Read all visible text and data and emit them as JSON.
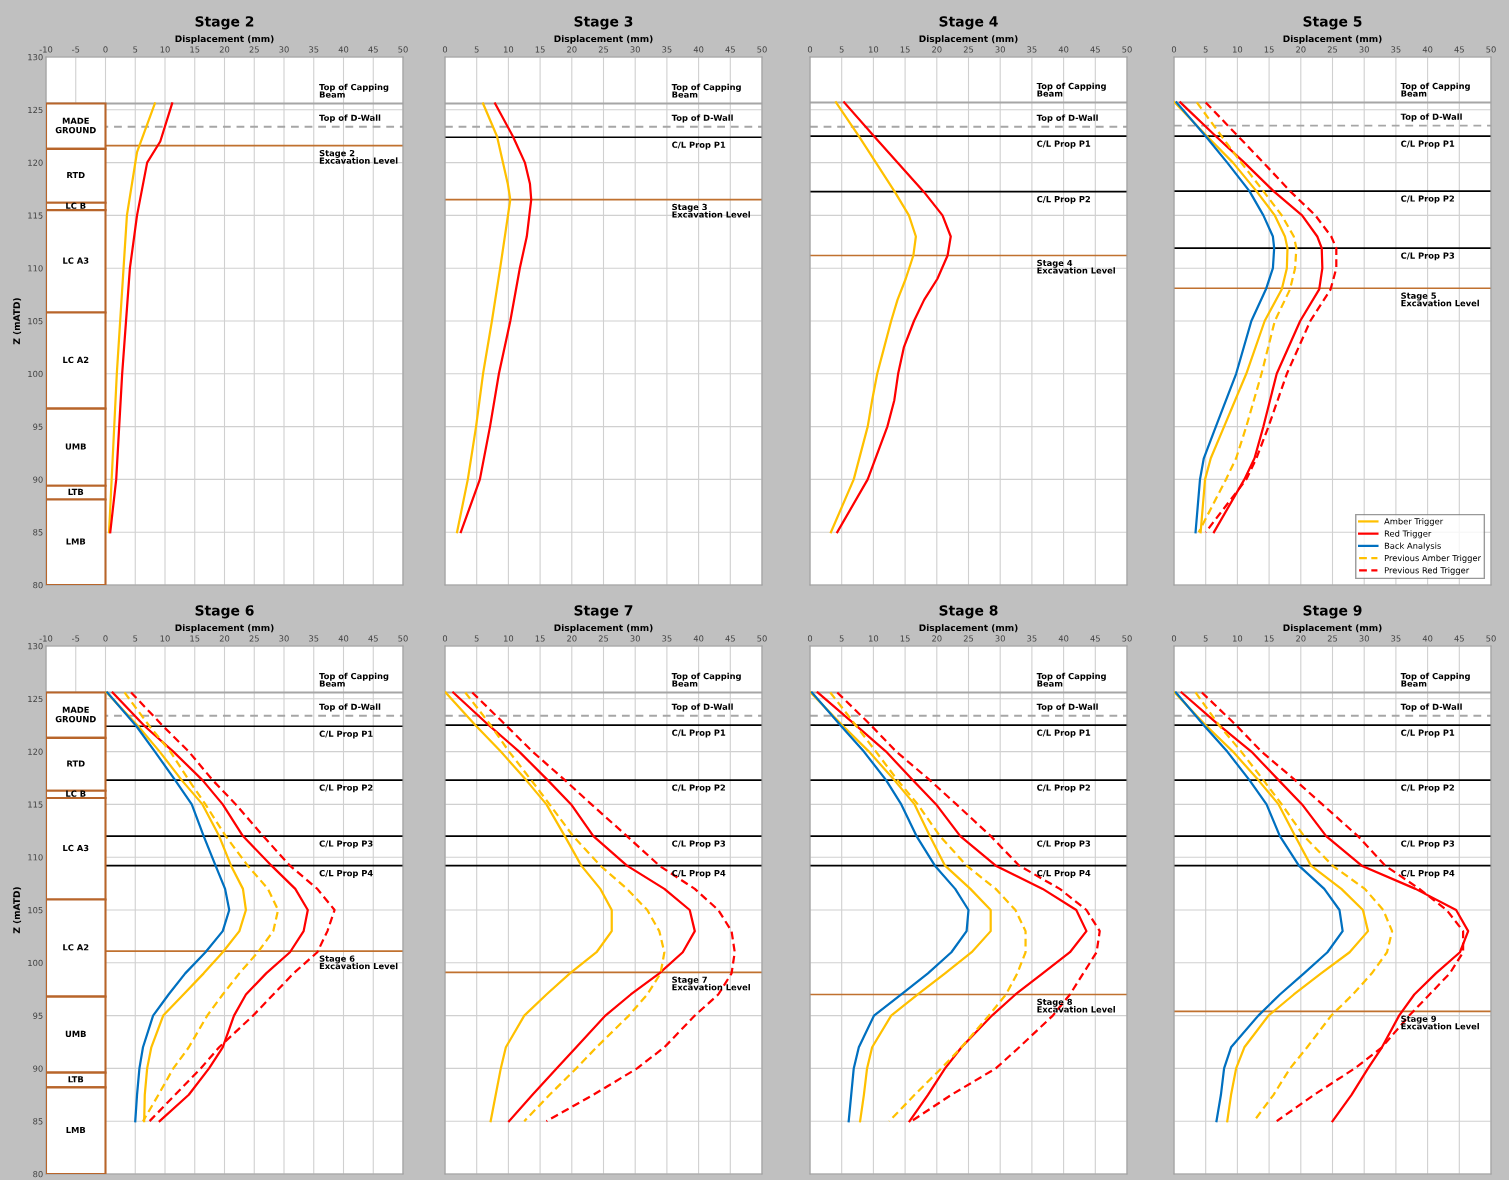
{
  "chart_data": [
    {
      "type": "line",
      "title": "Stage 2",
      "xlabel": "Displacement (mm)",
      "ylabel": "Z (mATD)",
      "xlim": [
        -10,
        50
      ],
      "ylim": [
        80,
        130
      ],
      "xticks": [
        -10,
        -5,
        0,
        5,
        10,
        15,
        20,
        25,
        30,
        35,
        40,
        45,
        50
      ],
      "yticks": [
        80,
        85,
        90,
        95,
        100,
        105,
        110,
        115,
        120,
        125,
        130
      ],
      "grid": true,
      "ref_lines": [
        {
          "axis": "y",
          "value": 125.6,
          "label": "Top of Capping\nBeam",
          "color": "#a6a6a6",
          "line_style": "solid"
        },
        {
          "axis": "y",
          "value": 123.4,
          "label": "Top of D-Wall",
          "color": "#a6a6a6",
          "line_style": "dashed"
        },
        {
          "axis": "y",
          "value": 121.6,
          "label": "Stage 2\nExcavation Level",
          "color": "#c0712f",
          "line_style": "solid"
        }
      ],
      "bands": [
        {
          "axis": "y",
          "from": 121.3,
          "to": 125.6,
          "label": "MADE\nGROUND",
          "color": "#b8652a"
        },
        {
          "axis": "y",
          "from": 116.2,
          "to": 121.3,
          "label": "RTD",
          "color": "#b8652a"
        },
        {
          "axis": "y",
          "from": 115.5,
          "to": 116.2,
          "label": "LC B",
          "color": "#b8652a"
        },
        {
          "axis": "y",
          "from": 105.8,
          "to": 115.5,
          "label": "LC A3",
          "color": "#b8652a"
        },
        {
          "axis": "y",
          "from": 96.7,
          "to": 105.8,
          "label": "LC A2",
          "color": "#b8652a"
        },
        {
          "axis": "y",
          "from": 89.4,
          "to": 96.7,
          "label": "UMB",
          "color": "#b8652a"
        },
        {
          "axis": "y",
          "from": 88.1,
          "to": 89.4,
          "label": "LTB",
          "color": "#b8652a"
        },
        {
          "axis": "y",
          "from": 80,
          "to": 88.1,
          "label": "LMB",
          "color": "#b8652a"
        }
      ],
      "series": [
        {
          "color": "#ffc000",
          "line_style": "solid",
          "x": [
            8.3,
            5.3,
            3.6,
            1.9,
            0.6
          ],
          "values": [
            125.6,
            121,
            115,
            100,
            85
          ]
        },
        {
          "color": "#ff0000",
          "line_style": "solid",
          "x": [
            11.2,
            9.2,
            7.0,
            5.3,
            4.1,
            2.8,
            1.8,
            0.8
          ],
          "values": [
            125.6,
            122,
            120,
            115,
            110,
            100,
            90,
            85
          ]
        }
      ]
    },
    {
      "type": "line",
      "title": "Stage 3",
      "xlabel": "Displacement (mm)",
      "xlim": [
        0,
        50
      ],
      "ylim": [
        80,
        130
      ],
      "xticks": [
        0,
        5,
        10,
        15,
        20,
        25,
        30,
        35,
        40,
        45,
        50
      ],
      "yticks": [
        80,
        85,
        90,
        95,
        100,
        105,
        110,
        115,
        120,
        125,
        130
      ],
      "grid": true,
      "tick_labels": "x",
      "ref_lines": [
        {
          "axis": "y",
          "value": 125.6,
          "label": "Top of Capping\nBeam",
          "color": "#a6a6a6",
          "line_style": "solid"
        },
        {
          "axis": "y",
          "value": 123.4,
          "label": "Top of D-Wall",
          "color": "#a6a6a6",
          "line_style": "dashed"
        },
        {
          "axis": "y",
          "value": 122.4,
          "label": "C/L Prop P1",
          "color": "#000000",
          "line_style": "solid"
        },
        {
          "axis": "y",
          "value": 116.5,
          "label": "Stage 3\nExcavation Level",
          "color": "#c0712f",
          "line_style": "solid"
        }
      ],
      "series": [
        {
          "color": "#ffc000",
          "line_style": "solid",
          "x": [
            6.0,
            8.2,
            9.9,
            10.3,
            8.7,
            7.4,
            6.0,
            4.9,
            3.6,
            1.9
          ],
          "values": [
            125.6,
            122.5,
            118,
            116.5,
            110,
            105,
            100,
            95,
            90,
            85
          ]
        },
        {
          "color": "#ff0000",
          "line_style": "solid",
          "x": [
            7.9,
            10.7,
            12.6,
            13.4,
            13.6,
            12.9,
            11.8,
            10.3,
            8.5,
            7.1,
            5.5,
            2.5
          ],
          "values": [
            125.6,
            122.5,
            120,
            118,
            116.5,
            113,
            110,
            105,
            100,
            95,
            90,
            85
          ]
        }
      ]
    },
    {
      "type": "line",
      "title": "Stage 4",
      "xlabel": "Displacement (mm)",
      "xlim": [
        0,
        50
      ],
      "ylim": [
        80,
        130
      ],
      "xticks": [
        0,
        5,
        10,
        15,
        20,
        25,
        30,
        35,
        40,
        45,
        50
      ],
      "yticks": [
        80,
        85,
        90,
        95,
        100,
        105,
        110,
        115,
        120,
        125,
        130
      ],
      "grid": true,
      "tick_labels": "x",
      "ref_lines": [
        {
          "axis": "y",
          "value": 125.7,
          "label": "Top of Capping\nBeam",
          "color": "#a6a6a6",
          "line_style": "solid"
        },
        {
          "axis": "y",
          "value": 123.4,
          "label": "Top of D-Wall",
          "color": "#a6a6a6",
          "line_style": "dashed"
        },
        {
          "axis": "y",
          "value": 122.5,
          "label": "C/L Prop P1",
          "color": "#000000",
          "line_style": "solid"
        },
        {
          "axis": "y",
          "value": 117.25,
          "label": "C/L Prop P2",
          "color": "#000000",
          "line_style": "solid"
        },
        {
          "axis": "y",
          "value": 111.2,
          "label": "Stage 4\nExcavation Level",
          "color": "#c0712f",
          "line_style": "solid"
        }
      ],
      "series": [
        {
          "color": "#ffc000",
          "line_style": "solid",
          "x": [
            4.1,
            7.7,
            10.4,
            13.4,
            15.6,
            16.7,
            16.3,
            15.1,
            13.8,
            12.8,
            11.7,
            10.6,
            9.8,
            9.1,
            6.9,
            3.3
          ],
          "values": [
            125.7,
            122.5,
            120,
            117.2,
            115,
            113,
            111.2,
            109,
            107,
            105,
            102.5,
            100,
            97.5,
            95,
            90,
            85
          ]
        },
        {
          "color": "#ff0000",
          "line_style": "solid",
          "x": [
            5.4,
            10.1,
            13.8,
            18.0,
            20.9,
            22.2,
            21.7,
            20.1,
            18.0,
            16.4,
            14.8,
            13.9,
            13.3,
            12.2,
            9.1,
            4.3
          ],
          "values": [
            125.7,
            122.5,
            120,
            117.2,
            115,
            113,
            111.2,
            109,
            107,
            105,
            102.5,
            100,
            97.5,
            95,
            90,
            85
          ]
        }
      ]
    },
    {
      "type": "line",
      "title": "Stage 5",
      "xlabel": "Displacement (mm)",
      "xlim": [
        0,
        50
      ],
      "ylim": [
        80,
        130
      ],
      "xticks": [
        0,
        5,
        10,
        15,
        20,
        25,
        30,
        35,
        40,
        45,
        50
      ],
      "yticks": [
        80,
        85,
        90,
        95,
        100,
        105,
        110,
        115,
        120,
        125,
        130
      ],
      "grid": true,
      "tick_labels": "x",
      "legend": "bottom right",
      "ref_lines": [
        {
          "axis": "y",
          "value": 125.7,
          "label": "Top of Capping\nBeam",
          "color": "#a6a6a6",
          "line_style": "solid"
        },
        {
          "axis": "y",
          "value": 123.5,
          "label": "Top of D-Wall",
          "color": "#a6a6a6",
          "line_style": "dashed"
        },
        {
          "axis": "y",
          "value": 122.5,
          "label": "C/L Prop P1",
          "color": "#000000",
          "line_style": "solid"
        },
        {
          "axis": "y",
          "value": 117.3,
          "label": "C/L Prop P2",
          "color": "#000000",
          "line_style": "solid"
        },
        {
          "axis": "y",
          "value": 111.9,
          "label": "C/L Prop P3",
          "color": "#000000",
          "line_style": "solid"
        },
        {
          "axis": "y",
          "value": 108.1,
          "label": "Stage 5\nExcavation Level",
          "color": "#c0712f",
          "line_style": "solid"
        }
      ],
      "series": [
        {
          "name": "Amber Trigger",
          "color": "#ffc000",
          "line_style": "solid",
          "x": [
            0.1,
            5.2,
            9.3,
            13.0,
            15.9,
            17.5,
            17.9,
            17.8,
            17.0,
            14.3,
            11.4,
            7.9,
            5.8,
            4.9,
            4.2
          ],
          "values": [
            125.7,
            122.5,
            120,
            117.3,
            115,
            113,
            111.9,
            110,
            108,
            105,
            100,
            95,
            92,
            90,
            85
          ]
        },
        {
          "name": "Red Trigger",
          "color": "#ff0000",
          "line_style": "solid",
          "x": [
            1.0,
            6.6,
            11.1,
            15.7,
            20.2,
            22.6,
            23.3,
            23.4,
            22.9,
            19.9,
            16.2,
            14.1,
            12.7,
            11.1,
            6.3
          ],
          "values": [
            125.7,
            122.5,
            120,
            117.3,
            115,
            113,
            111.9,
            110,
            108,
            105,
            100,
            95,
            92,
            90,
            85
          ]
        },
        {
          "name": "Back Analysis",
          "color": "#0070c0",
          "line_style": "solid",
          "x": [
            0.4,
            5.0,
            8.4,
            11.9,
            14.1,
            15.6,
            15.8,
            15.6,
            14.5,
            12.2,
            9.8,
            6.6,
            4.7,
            4.1,
            3.4
          ],
          "values": [
            125.7,
            122.5,
            120,
            117.3,
            115,
            113,
            111.9,
            110,
            108,
            105,
            100,
            95,
            92,
            90,
            85
          ]
        },
        {
          "name": "Previous Amber Trigger",
          "color": "#ffc000",
          "line_style": "dashed",
          "x": [
            3.6,
            7.5,
            10.6,
            14.1,
            17.0,
            18.9,
            19.3,
            19.1,
            18.3,
            15.9,
            13.8,
            11.4,
            9.8,
            8.2,
            3.9
          ],
          "values": [
            125.7,
            122.5,
            120,
            117.3,
            115,
            113,
            111.9,
            110,
            108,
            105,
            100,
            95,
            92,
            90,
            85
          ]
        },
        {
          "name": "Previous Red Trigger",
          "color": "#ff0000",
          "line_style": "dashed",
          "x": [
            5.0,
            10.1,
            14.1,
            18.3,
            22.3,
            24.8,
            25.6,
            25.6,
            24.7,
            21.5,
            17.8,
            14.9,
            13.0,
            11.4,
            5.0
          ],
          "values": [
            125.7,
            122.5,
            120,
            117.3,
            115,
            113,
            111.9,
            110,
            108,
            105,
            100,
            95,
            92,
            90,
            85
          ]
        }
      ]
    },
    {
      "type": "line",
      "title": "Stage 6",
      "xlabel": "Displacement (mm)",
      "ylabel": "Z (mATD)",
      "xlim": [
        -10,
        50
      ],
      "ylim": [
        80,
        130
      ],
      "xticks": [
        -10,
        -5,
        0,
        5,
        10,
        15,
        20,
        25,
        30,
        35,
        40,
        45,
        50
      ],
      "yticks": [
        80,
        85,
        90,
        95,
        100,
        105,
        110,
        115,
        120,
        125,
        130
      ],
      "grid": true,
      "ref_lines": [
        {
          "axis": "y",
          "value": 125.6,
          "label": "Top of Capping\nBeam",
          "color": "#a6a6a6",
          "line_style": "solid"
        },
        {
          "axis": "y",
          "value": 123.4,
          "label": "Top of D-Wall",
          "color": "#a6a6a6",
          "line_style": "dashed"
        },
        {
          "axis": "y",
          "value": 122.4,
          "label": "C/L Prop P1",
          "color": "#000000",
          "line_style": "solid"
        },
        {
          "axis": "y",
          "value": 117.3,
          "label": "C/L Prop P2",
          "color": "#000000",
          "line_style": "solid"
        },
        {
          "axis": "y",
          "value": 112.0,
          "label": "C/L Prop P3",
          "color": "#000000",
          "line_style": "solid"
        },
        {
          "axis": "y",
          "value": 109.2,
          "label": "C/L Prop P4",
          "color": "#000000",
          "line_style": "solid"
        },
        {
          "axis": "y",
          "value": 101.1,
          "label": "Stage 6\nExcavation Level",
          "color": "#c0712f",
          "line_style": "solid"
        }
      ],
      "bands": [
        {
          "axis": "y",
          "from": 121.3,
          "to": 125.6,
          "label": "MADE\nGROUND",
          "color": "#b8652a"
        },
        {
          "axis": "y",
          "from": 116.3,
          "to": 121.3,
          "label": "RTD",
          "color": "#b8652a"
        },
        {
          "axis": "y",
          "from": 115.6,
          "to": 116.3,
          "label": "LC B",
          "color": "#b8652a"
        },
        {
          "axis": "y",
          "from": 106.0,
          "to": 115.6,
          "label": "LC A3",
          "color": "#b8652a"
        },
        {
          "axis": "y",
          "from": 96.8,
          "to": 106.0,
          "label": "LC A2",
          "color": "#b8652a"
        },
        {
          "axis": "y",
          "from": 89.6,
          "to": 96.8,
          "label": "UMB",
          "color": "#b8652a"
        },
        {
          "axis": "y",
          "from": 88.2,
          "to": 89.6,
          "label": "LTB",
          "color": "#b8652a"
        },
        {
          "axis": "y",
          "from": 80,
          "to": 88.2,
          "label": "LMB",
          "color": "#b8652a"
        }
      ],
      "series": [
        {
          "color": "#ffc000",
          "line_style": "solid",
          "x": [
            0.2,
            5.5,
            9.1,
            12.8,
            16.3,
            19.1,
            21.1,
            23.1,
            23.6,
            22.5,
            19.7,
            16.5,
            13.1,
            9.7,
            7.7,
            7.0,
            6.6,
            6.5
          ],
          "values": [
            125.6,
            122.4,
            120,
            117.3,
            115,
            112,
            109.2,
            107,
            105,
            103,
            101,
            99,
            97,
            95,
            92,
            90,
            87.5,
            85
          ]
        },
        {
          "color": "#ff0000",
          "line_style": "solid",
          "x": [
            1.2,
            6.6,
            11.4,
            16.3,
            19.7,
            23.1,
            27.9,
            31.9,
            34.0,
            33.3,
            31.0,
            27.0,
            23.6,
            21.6,
            19.7,
            17.4,
            14.0,
            9.1
          ],
          "values": [
            125.6,
            122.4,
            120,
            117.3,
            115,
            112,
            109.2,
            107,
            105,
            103,
            101,
            99,
            97,
            95,
            92,
            90,
            87.5,
            85
          ]
        },
        {
          "color": "#0070c0",
          "line_style": "solid",
          "x": [
            0.3,
            5.2,
            8.3,
            11.7,
            14.5,
            16.5,
            18.5,
            20.1,
            20.8,
            19.7,
            16.8,
            13.4,
            10.6,
            8.0,
            6.3,
            5.7,
            5.3,
            5.0
          ],
          "values": [
            125.6,
            122.4,
            120,
            117.3,
            115,
            112,
            109.2,
            107,
            105,
            103,
            101,
            99,
            97,
            95,
            92,
            90,
            87.5,
            85
          ]
        },
        {
          "color": "#ffc000",
          "line_style": "dashed",
          "x": [
            3.2,
            7.4,
            10.9,
            14.0,
            16.8,
            20.2,
            23.9,
            27.3,
            29.0,
            28.2,
            25.6,
            22.5,
            19.7,
            17.1,
            14.0,
            11.4,
            8.9,
            6.3
          ],
          "values": [
            125.6,
            122.4,
            120,
            117.3,
            115,
            112,
            109.2,
            107,
            105,
            103,
            101,
            99,
            97,
            95,
            92,
            90,
            87.5,
            85
          ]
        },
        {
          "color": "#ff0000",
          "line_style": "dashed",
          "x": [
            4.3,
            9.7,
            14.0,
            18.0,
            21.9,
            26.5,
            31.0,
            35.6,
            38.5,
            37.3,
            35.6,
            31.6,
            28.2,
            24.8,
            19.1,
            16.0,
            11.7,
            7.4
          ],
          "values": [
            125.6,
            122.4,
            120,
            117.3,
            115,
            112,
            109.2,
            107,
            105,
            103,
            101,
            99,
            97,
            95,
            92,
            90,
            87.5,
            85
          ]
        }
      ]
    },
    {
      "type": "line",
      "title": "Stage 7",
      "xlabel": "Displacement (mm)",
      "xlim": [
        0,
        50
      ],
      "ylim": [
        80,
        130
      ],
      "xticks": [
        0,
        5,
        10,
        15,
        20,
        25,
        30,
        35,
        40,
        45,
        50
      ],
      "yticks": [
        80,
        85,
        90,
        95,
        100,
        105,
        110,
        115,
        120,
        125,
        130
      ],
      "grid": true,
      "tick_labels": "x",
      "ref_lines": [
        {
          "axis": "y",
          "value": 125.6,
          "label": "Top of Capping\nBeam",
          "color": "#a6a6a6",
          "line_style": "solid"
        },
        {
          "axis": "y",
          "value": 123.4,
          "label": "Top of D-Wall",
          "color": "#a6a6a6",
          "line_style": "dashed"
        },
        {
          "axis": "y",
          "value": 122.5,
          "label": "C/L Prop P1",
          "color": "#000000",
          "line_style": "solid"
        },
        {
          "axis": "y",
          "value": 117.3,
          "label": "C/L Prop P2",
          "color": "#000000",
          "line_style": "solid"
        },
        {
          "axis": "y",
          "value": 112.0,
          "label": "C/L Prop P3",
          "color": "#000000",
          "line_style": "solid"
        },
        {
          "axis": "y",
          "value": 109.2,
          "label": "C/L Prop P4",
          "color": "#000000",
          "line_style": "solid"
        },
        {
          "axis": "y",
          "value": 99.1,
          "label": "Stage 7\nExcavation Level",
          "color": "#c0712f",
          "line_style": "solid"
        }
      ],
      "series": [
        {
          "color": "#ffc000",
          "line_style": "solid",
          "x": [
            0.1,
            4.8,
            8.8,
            12.8,
            16.0,
            18.9,
            21.5,
            24.5,
            26.3,
            26.3,
            23.9,
            19.7,
            16.0,
            12.5,
            9.6,
            8.8,
            8.0,
            7.2
          ],
          "values": [
            125.6,
            122.5,
            120,
            117.3,
            115,
            112,
            109.2,
            107,
            105,
            103,
            101,
            99,
            97,
            95,
            92,
            90,
            87.5,
            85
          ]
        },
        {
          "color": "#ff0000",
          "line_style": "solid",
          "x": [
            1.3,
            6.9,
            11.7,
            16.2,
            19.9,
            23.4,
            28.7,
            34.6,
            38.6,
            39.4,
            37.5,
            33.8,
            29.3,
            25.3,
            20.7,
            17.6,
            13.8,
            10.1
          ],
          "values": [
            125.6,
            122.5,
            120,
            117.3,
            115,
            112,
            109.2,
            107,
            105,
            103,
            101,
            99,
            97,
            95,
            92,
            90,
            87.5,
            85
          ]
        },
        {
          "color": "#ffc000",
          "line_style": "dashed",
          "x": [
            3.2,
            7.2,
            10.1,
            13.6,
            16.5,
            20.2,
            24.5,
            28.7,
            31.9,
            33.8,
            34.6,
            34.0,
            31.9,
            29.0,
            23.9,
            20.7,
            16.5,
            12.5
          ],
          "values": [
            125.6,
            122.5,
            120,
            117.3,
            115,
            112,
            109.2,
            107,
            105,
            103,
            101,
            99,
            97,
            95,
            92,
            90,
            87.5,
            85
          ]
        },
        {
          "color": "#ff0000",
          "line_style": "dashed",
          "x": [
            4.3,
            9.6,
            13.8,
            18.9,
            23.1,
            28.7,
            33.8,
            39.4,
            43.1,
            45.2,
            45.7,
            45.2,
            43.1,
            39.4,
            34.6,
            30.3,
            23.4,
            16.0
          ],
          "values": [
            125.6,
            122.5,
            120,
            117.3,
            115,
            112,
            109.2,
            107,
            105,
            103,
            101,
            99,
            97,
            95,
            92,
            90,
            87.5,
            85
          ]
        }
      ]
    },
    {
      "type": "line",
      "title": "Stage 8",
      "xlabel": "Displacement (mm)",
      "xlim": [
        0,
        50
      ],
      "ylim": [
        80,
        130
      ],
      "xticks": [
        0,
        5,
        10,
        15,
        20,
        25,
        30,
        35,
        40,
        45,
        50
      ],
      "yticks": [
        80,
        85,
        90,
        95,
        100,
        105,
        110,
        115,
        120,
        125,
        130
      ],
      "grid": true,
      "tick_labels": "x",
      "ref_lines": [
        {
          "axis": "y",
          "value": 125.6,
          "label": "Top of Capping\nBeam",
          "color": "#a6a6a6",
          "line_style": "solid"
        },
        {
          "axis": "y",
          "value": 123.4,
          "label": "Top of D-Wall",
          "color": "#a6a6a6",
          "line_style": "dashed"
        },
        {
          "axis": "y",
          "value": 122.5,
          "label": "C/L Prop P1",
          "color": "#000000",
          "line_style": "solid"
        },
        {
          "axis": "y",
          "value": 117.3,
          "label": "C/L Prop P2",
          "color": "#000000",
          "line_style": "solid"
        },
        {
          "axis": "y",
          "value": 112.0,
          "label": "C/L Prop P3",
          "color": "#000000",
          "line_style": "solid"
        },
        {
          "axis": "y",
          "value": 109.2,
          "label": "C/L Prop P4",
          "color": "#000000",
          "line_style": "solid"
        },
        {
          "axis": "y",
          "value": 97.0,
          "label": "Stage 8\nExcavation Level",
          "color": "#c0712f",
          "line_style": "solid"
        }
      ],
      "series": [
        {
          "color": "#ffc000",
          "line_style": "solid",
          "x": [
            0.1,
            5.1,
            9.3,
            13.3,
            16.5,
            18.9,
            21.3,
            25.3,
            28.5,
            28.5,
            25.5,
            21.3,
            17.0,
            12.8,
            9.8,
            9.0,
            8.5,
            7.9
          ],
          "values": [
            125.6,
            122.5,
            120,
            117.3,
            115,
            112,
            109.2,
            107,
            105,
            103,
            101,
            99,
            97,
            95,
            92,
            90,
            87.5,
            85
          ]
        },
        {
          "color": "#ff0000",
          "line_style": "solid",
          "x": [
            1.2,
            7.2,
            12.0,
            16.2,
            19.9,
            23.7,
            29.3,
            36.7,
            42.0,
            43.6,
            41.0,
            36.7,
            32.4,
            28.7,
            23.9,
            21.3,
            18.6,
            15.7
          ],
          "values": [
            125.6,
            122.5,
            120,
            117.3,
            115,
            112,
            109.2,
            107,
            105,
            103,
            101,
            99,
            97,
            95,
            92,
            90,
            87.5,
            85
          ]
        },
        {
          "color": "#0070c0",
          "line_style": "solid",
          "x": [
            0.3,
            4.8,
            8.5,
            12.0,
            14.4,
            16.8,
            19.7,
            22.9,
            25.0,
            24.7,
            22.3,
            18.6,
            14.4,
            10.1,
            7.7,
            6.9,
            6.5,
            6.1
          ],
          "values": [
            125.6,
            122.5,
            120,
            117.3,
            115,
            112,
            109.2,
            107,
            105,
            103,
            101,
            99,
            97,
            95,
            92,
            90,
            87.5,
            85
          ]
        },
        {
          "color": "#ffc000",
          "line_style": "dashed",
          "x": [
            3.2,
            7.2,
            10.4,
            13.8,
            17.0,
            20.5,
            24.7,
            29.3,
            32.4,
            34.0,
            34.0,
            32.7,
            30.9,
            28.2,
            23.9,
            20.7,
            16.5,
            12.5
          ],
          "values": [
            125.6,
            122.5,
            120,
            117.3,
            115,
            112,
            109.2,
            107,
            105,
            103,
            101,
            99,
            97,
            95,
            92,
            90,
            87.5,
            85
          ]
        },
        {
          "color": "#ff0000",
          "line_style": "dashed",
          "x": [
            4.3,
            9.6,
            13.6,
            18.9,
            23.1,
            28.5,
            33.0,
            39.4,
            43.6,
            45.7,
            45.2,
            43.1,
            41.0,
            38.3,
            33.0,
            29.3,
            22.3,
            16.0
          ],
          "values": [
            125.6,
            122.5,
            120,
            117.3,
            115,
            112,
            109.2,
            107,
            105,
            103,
            101,
            99,
            97,
            95,
            92,
            90,
            87.5,
            85
          ]
        }
      ]
    },
    {
      "type": "line",
      "title": "Stage 9",
      "xlabel": "Displacement (mm)",
      "xlim": [
        0,
        50
      ],
      "ylim": [
        80,
        130
      ],
      "xticks": [
        0,
        5,
        10,
        15,
        20,
        25,
        30,
        35,
        40,
        45,
        50
      ],
      "yticks": [
        80,
        85,
        90,
        95,
        100,
        105,
        110,
        115,
        120,
        125,
        130
      ],
      "grid": true,
      "tick_labels": "x",
      "ref_lines": [
        {
          "axis": "y",
          "value": 125.6,
          "label": "Top of Capping\nBeam",
          "color": "#a6a6a6",
          "line_style": "solid"
        },
        {
          "axis": "y",
          "value": 123.4,
          "label": "Top of D-Wall",
          "color": "#a6a6a6",
          "line_style": "dashed"
        },
        {
          "axis": "y",
          "value": 122.5,
          "label": "C/L Prop P1",
          "color": "#000000",
          "line_style": "solid"
        },
        {
          "axis": "y",
          "value": 117.3,
          "label": "C/L Prop P2",
          "color": "#000000",
          "line_style": "solid"
        },
        {
          "axis": "y",
          "value": 112.0,
          "label": "C/L Prop P3",
          "color": "#000000",
          "line_style": "solid"
        },
        {
          "axis": "y",
          "value": 109.2,
          "label": "C/L Prop P4",
          "color": "#000000",
          "line_style": "solid"
        },
        {
          "axis": "y",
          "value": 95.4,
          "label": "Stage 9\nExcavation Level",
          "color": "#c0712f",
          "line_style": "solid"
        }
      ],
      "series": [
        {
          "color": "#ffc000",
          "line_style": "solid",
          "x": [
            0.1,
            5.0,
            9.3,
            13.3,
            16.5,
            19.1,
            21.6,
            26.4,
            29.8,
            30.6,
            27.7,
            23.2,
            18.9,
            14.9,
            11.1,
            9.8,
            9.0,
            8.4
          ],
          "values": [
            125.6,
            122.5,
            120,
            117.3,
            115,
            112,
            109.2,
            107,
            105,
            103,
            101,
            99,
            97,
            95,
            92,
            90,
            87.5,
            85
          ]
        },
        {
          "color": "#ff0000",
          "line_style": "solid",
          "x": [
            1.2,
            7.1,
            12.2,
            16.5,
            20.2,
            24.0,
            29.6,
            38.1,
            44.5,
            46.4,
            45.1,
            41.3,
            37.9,
            35.5,
            32.8,
            30.6,
            28.0,
            25.0
          ],
          "values": [
            125.6,
            122.5,
            120,
            117.3,
            115,
            112,
            109.2,
            107,
            105,
            103,
            101,
            99,
            97,
            95,
            92,
            90,
            87.5,
            85
          ]
        },
        {
          "color": "#0070c0",
          "line_style": "solid",
          "x": [
            0.3,
            4.7,
            8.4,
            11.9,
            14.6,
            16.7,
            19.7,
            23.7,
            26.1,
            26.6,
            24.2,
            20.5,
            16.7,
            13.3,
            9.0,
            7.9,
            7.4,
            6.7
          ],
          "values": [
            125.6,
            122.5,
            120,
            117.3,
            115,
            112,
            109.2,
            107,
            105,
            103,
            101,
            99,
            97,
            95,
            92,
            90,
            87.5,
            85
          ]
        },
        {
          "color": "#ffc000",
          "line_style": "dashed",
          "x": [
            3.4,
            7.1,
            10.6,
            14.1,
            17.0,
            20.5,
            25.0,
            30.1,
            33.0,
            34.4,
            33.6,
            31.2,
            28.2,
            24.8,
            21.0,
            18.3,
            15.7,
            12.6
          ],
          "values": [
            125.6,
            122.5,
            120,
            117.3,
            115,
            112,
            109.2,
            107,
            105,
            103,
            101,
            99,
            97,
            95,
            92,
            90,
            87.5,
            85
          ]
        },
        {
          "color": "#ff0000",
          "line_style": "dashed",
          "x": [
            4.4,
            9.8,
            13.8,
            19.1,
            23.4,
            29.0,
            33.3,
            38.7,
            43.0,
            45.6,
            45.6,
            43.5,
            40.3,
            37.1,
            32.8,
            28.5,
            22.1,
            16.2
          ],
          "values": [
            125.6,
            122.5,
            120,
            117.3,
            115,
            112,
            109.2,
            107,
            105,
            103,
            101,
            99,
            97,
            95,
            92,
            90,
            87.5,
            85
          ]
        }
      ]
    }
  ]
}
